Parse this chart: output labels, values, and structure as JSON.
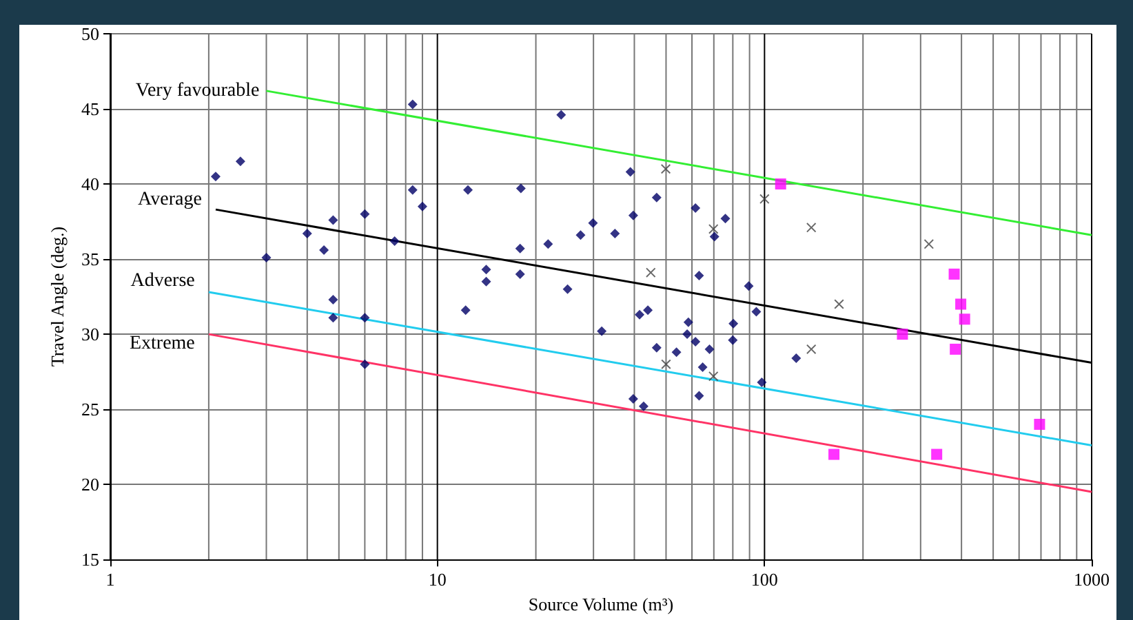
{
  "chart_data": {
    "type": "scatter",
    "xlabel": "Source Volume (m³)",
    "ylabel": "Travel Angle (deg.)",
    "log": "x",
    "xlim": [
      1,
      1000
    ],
    "xticks": [
      1,
      10,
      100,
      1000
    ],
    "ylim": [
      15,
      50
    ],
    "yticks": [
      15,
      20,
      25,
      30,
      35,
      40,
      45,
      50
    ],
    "grid": true,
    "legend": false,
    "series": [
      {
        "name": "Very favourable",
        "type": "line",
        "marker": "none",
        "color": "#33ee33",
        "x": [
          3.0,
          1000
        ],
        "values": [
          46.2,
          36.6
        ]
      },
      {
        "name": "Average",
        "type": "line",
        "marker": "none",
        "color": "#000000",
        "x": [
          2.1,
          1000
        ],
        "values": [
          38.3,
          28.1
        ]
      },
      {
        "name": "Adverse",
        "type": "line",
        "marker": "none",
        "color": "#22ccee",
        "x": [
          2.0,
          1000
        ],
        "values": [
          32.8,
          22.6
        ]
      },
      {
        "name": "Extreme",
        "type": "line",
        "marker": "none",
        "color": "#ff3366",
        "x": [
          2.0,
          1000
        ],
        "values": [
          30.0,
          19.5
        ]
      },
      {
        "marker": "diamond",
        "color": "#000066",
        "x": [
          2.1,
          2.5,
          3.0,
          4.0,
          4.5,
          4.8,
          4.8,
          4.8,
          6.0,
          6.0,
          6.0,
          7.4,
          8.4,
          8.4,
          9.0,
          23.9,
          12.4,
          18.0,
          12.2,
          14.1,
          14.1,
          17.9,
          17.9,
          21.8,
          25.0,
          27.4,
          29.9,
          31.8,
          34.9,
          38.9,
          39.7,
          39.7,
          42.7,
          41.5,
          44.0,
          46.8,
          46.8,
          53.8,
          58.5,
          58,
          61.5,
          61.5,
          63.1,
          64.7,
          63.1,
          67.9,
          70.3,
          75.9,
          80.3,
          80,
          89.5,
          94.4,
          98.1,
          125
        ],
        "values": [
          40.5,
          41.5,
          35.1,
          36.7,
          35.6,
          37.6,
          32.3,
          31.1,
          38.0,
          31.1,
          28.0,
          36.2,
          45.3,
          39.6,
          38.5,
          44.6,
          39.6,
          39.7,
          31.6,
          34.3,
          33.5,
          35.7,
          34.0,
          36.0,
          33.0,
          36.6,
          37.4,
          30.2,
          36.7,
          40.8,
          37.9,
          25.7,
          25.2,
          31.3,
          31.6,
          39.1,
          29.1,
          28.8,
          30.8,
          30.0,
          29.5,
          38.4,
          33.9,
          27.8,
          25.9,
          29.0,
          36.5,
          37.7,
          30.7,
          29.6,
          33.2,
          31.5,
          26.8,
          28.4
        ]
      },
      {
        "marker": "cross",
        "color": "#444444",
        "x": [
          49.9,
          44.9,
          69.8,
          50,
          69.8,
          100,
          139,
          318,
          169,
          139
        ],
        "values": [
          41.0,
          34.1,
          37.0,
          28.0,
          27.2,
          39.0,
          37.1,
          36.0,
          32.0,
          29.0
        ]
      },
      {
        "marker": "square",
        "color": "#ff00ff",
        "x": [
          112,
          380,
          398,
          409,
          264,
          383,
          693,
          163,
          336
        ],
        "values": [
          40.0,
          34.0,
          32.0,
          31.0,
          30.0,
          29.0,
          24.0,
          22.0,
          22.0
        ]
      }
    ]
  }
}
